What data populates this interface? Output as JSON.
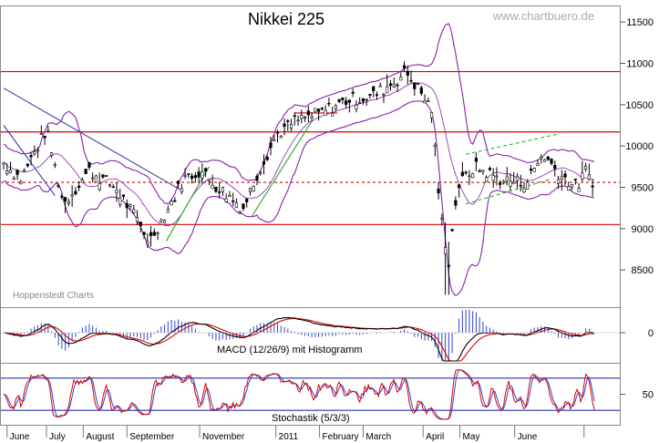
{
  "chart_data": [
    {
      "type": "ohlc",
      "title": "Nikkei 225",
      "watermark": "www.chartbuero.de",
      "source_note": "Hoppenstedt Charts",
      "y_ticks": [
        8500,
        9000,
        9500,
        10000,
        10500,
        11000,
        11500
      ],
      "ylim": [
        8050,
        11700
      ],
      "x_labels": [
        "June",
        "July",
        "August",
        "September",
        "November",
        "2011",
        "February",
        "March",
        "April",
        "May",
        "June"
      ],
      "horizontal_lines": [
        {
          "value": 10900,
          "style": "solid",
          "color": "#dd0000"
        },
        {
          "value": 10170,
          "style": "solid",
          "color": "#dd0000"
        },
        {
          "value": 9560,
          "style": "dashed",
          "color": "#dd0000"
        },
        {
          "value": 9050,
          "style": "solid",
          "color": "#dd0000"
        }
      ],
      "price_path_key_points": [
        {
          "week": 0,
          "close": 9800
        },
        {
          "week": 2,
          "close": 9600
        },
        {
          "week": 5,
          "close": 10200
        },
        {
          "week": 7,
          "close": 9300
        },
        {
          "week": 10,
          "close": 9700
        },
        {
          "week": 13,
          "close": 9500
        },
        {
          "week": 15,
          "close": 9200
        },
        {
          "week": 17,
          "close": 8850
        },
        {
          "week": 19,
          "close": 9200
        },
        {
          "week": 21,
          "close": 9600
        },
        {
          "week": 23,
          "close": 9700
        },
        {
          "week": 25,
          "close": 9500
        },
        {
          "week": 28,
          "close": 9250
        },
        {
          "week": 30,
          "close": 9750
        },
        {
          "week": 32,
          "close": 10150
        },
        {
          "week": 34,
          "close": 10300
        },
        {
          "week": 37,
          "close": 10400
        },
        {
          "week": 40,
          "close": 10550
        },
        {
          "week": 43,
          "close": 10600
        },
        {
          "week": 46,
          "close": 10800
        },
        {
          "week": 47,
          "close": 10900
        },
        {
          "week": 49,
          "close": 10600
        },
        {
          "week": 50,
          "close": 10450
        },
        {
          "week": 51,
          "close": 9200
        },
        {
          "week": 52,
          "close": 8600
        },
        {
          "week": 53,
          "close": 9500
        },
        {
          "week": 55,
          "close": 9750
        },
        {
          "week": 58,
          "close": 9600
        },
        {
          "week": 61,
          "close": 9550
        },
        {
          "week": 63,
          "close": 9900
        },
        {
          "week": 65,
          "close": 9650
        },
        {
          "week": 67,
          "close": 9500
        },
        {
          "week": 68,
          "close": 9700
        },
        {
          "week": 69,
          "close": 9550
        }
      ],
      "bollinger_bands": "upper and lower bands, purple",
      "trend_lines": [
        {
          "color": "#3344aa",
          "from": {
            "week": 0,
            "value": 10700
          },
          "to": {
            "week": 21,
            "value": 9450
          }
        },
        {
          "color": "#3344aa",
          "from": {
            "week": 0,
            "value": 10250
          },
          "to": {
            "week": 6,
            "value": 9400
          }
        },
        {
          "color": "#22aa22",
          "from": {
            "week": 19,
            "value": 8850
          },
          "to": {
            "week": 24,
            "value": 9750
          }
        },
        {
          "color": "#22aa22",
          "from": {
            "week": 29,
            "value": 9150
          },
          "to": {
            "week": 36,
            "value": 10300
          }
        },
        {
          "color": "#22aa22",
          "from": {
            "week": 54,
            "value": 9900
          },
          "to": {
            "week": 65,
            "value": 10150
          },
          "dashed": true
        },
        {
          "color": "#22aa22",
          "from": {
            "week": 54,
            "value": 9300
          },
          "to": {
            "week": 64,
            "value": 9600
          },
          "dashed": true
        },
        {
          "color": "#dd0000",
          "from": {
            "week": 34,
            "value": 10400
          },
          "to": {
            "week": 39,
            "value": 10400
          }
        }
      ]
    },
    {
      "type": "line",
      "label": "MACD (12/26/9) mit Histogramm",
      "y_ticks": [
        0
      ],
      "series": [
        {
          "role": "macd",
          "color": "#000000"
        },
        {
          "role": "signal",
          "color": "#dd0000"
        },
        {
          "role": "histogram",
          "color": "#3344cc"
        }
      ]
    },
    {
      "type": "line",
      "label": "Stochastik (5/3/3)",
      "y_ticks": [
        50
      ],
      "ylim": [
        0,
        100
      ],
      "bands": [
        80,
        20
      ],
      "series": [
        {
          "role": "%K",
          "color": "#dd0000"
        },
        {
          "role": "%D",
          "color": "#3344cc"
        }
      ]
    }
  ]
}
